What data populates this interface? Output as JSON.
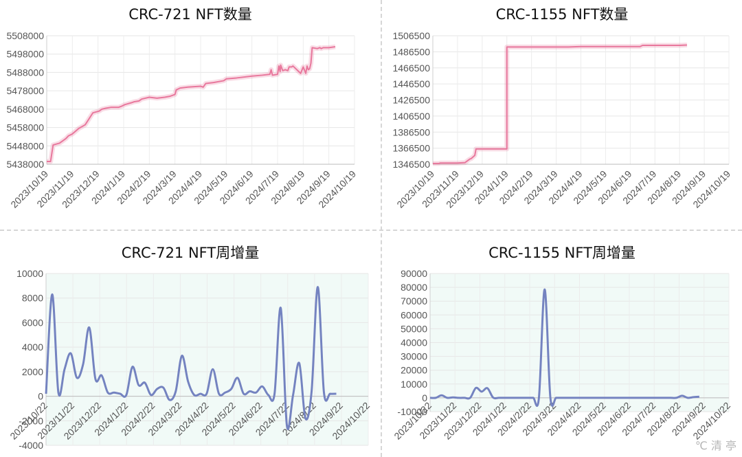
{
  "chart_data": [
    {
      "type": "line",
      "title": "CRC-721 NFT数量",
      "xlabel": "",
      "ylabel": "",
      "ylim": [
        5438000,
        5508000
      ],
      "yticks": [
        5438000,
        5448000,
        5458000,
        5468000,
        5478000,
        5488000,
        5498000,
        5508000
      ],
      "xticks": [
        "2023/10/19",
        "2023/11/19",
        "2023/12/19",
        "2024/1/19",
        "2024/2/19",
        "2024/3/19",
        "2024/4/19",
        "2024/5/19",
        "2024/6/19",
        "2024/7/19",
        "2024/8/19",
        "2024/9/19",
        "2024/10/19"
      ],
      "grid": true,
      "line_color": "#e8779c",
      "series": [
        {
          "x": [
            0,
            0.15,
            0.25,
            0.5,
            0.75,
            0.85,
            1.0,
            1.25,
            1.5,
            1.8,
            2.05,
            2.15,
            2.3,
            2.5,
            2.8,
            2.9,
            3.05,
            3.3,
            3.4,
            3.6,
            3.7,
            4.0,
            4.3,
            4.6,
            4.8,
            5.0,
            5.05,
            5.2,
            5.5,
            6.0,
            6.1,
            6.2,
            6.5,
            6.9,
            7.0,
            7.4,
            8.0,
            8.4,
            8.7,
            8.75,
            8.8,
            9.0,
            9.05,
            9.1,
            9.12,
            9.2,
            9.3,
            9.4,
            9.45,
            9.55,
            9.6,
            9.9,
            10.0,
            10.1,
            10.15,
            10.2,
            10.25,
            10.3,
            10.35,
            10.55,
            10.65,
            10.7,
            10.78,
            11.0,
            11.25
          ],
          "y": [
            5439500,
            5439500,
            5448500,
            5449500,
            5452000,
            5453500,
            5454500,
            5457500,
            5459500,
            5466000,
            5467000,
            5468000,
            5468500,
            5469000,
            5469000,
            5469500,
            5470500,
            5471500,
            5472000,
            5472500,
            5473500,
            5474500,
            5474000,
            5474500,
            5475000,
            5476000,
            5478500,
            5479500,
            5480000,
            5480500,
            5480000,
            5482000,
            5482500,
            5483500,
            5484500,
            5485000,
            5486000,
            5486500,
            5487000,
            5489500,
            5486500,
            5487000,
            5491500,
            5488500,
            5492000,
            5489000,
            5489500,
            5489000,
            5491000,
            5491000,
            5491500,
            5487500,
            5491000,
            5487500,
            5491500,
            5489500,
            5490000,
            5493000,
            5501500,
            5501000,
            5501500,
            5501000,
            5501500,
            5501500,
            5502000
          ]
        }
      ]
    },
    {
      "type": "line",
      "title": "CRC-1155 NFT数量",
      "xlabel": "",
      "ylabel": "",
      "ylim": [
        1346500,
        1506500
      ],
      "yticks": [
        1346500,
        1366500,
        1386500,
        1406500,
        1426500,
        1446500,
        1466500,
        1486500,
        1506500
      ],
      "xticks": [
        "2023/10/19",
        "2023/11/19",
        "2023/12/19",
        "2024/1/19",
        "2024/2/19",
        "2024/3/19",
        "2024/4/19",
        "2024/5/19",
        "2024/6/19",
        "2024/7/19",
        "2024/8/19",
        "2024/9/19",
        "2024/10/19"
      ],
      "grid": true,
      "line_color": "#e8779c",
      "series": [
        {
          "x": [
            0,
            0.25,
            0.3,
            0.6,
            1.0,
            1.3,
            1.5,
            1.55,
            1.7,
            1.75,
            1.9,
            2.1,
            2.5,
            2.7,
            3.0,
            3.0,
            3.1,
            3.5,
            4.0,
            4.5,
            5.0,
            5.5,
            6.0,
            6.5,
            7.0,
            7.5,
            8.0,
            8.3,
            8.4,
            8.5,
            9.0,
            9.5,
            10.0,
            10.3
          ],
          "y": [
            1347500,
            1347500,
            1348000,
            1348000,
            1348000,
            1348500,
            1353000,
            1353500,
            1357500,
            1365500,
            1365500,
            1365500,
            1365500,
            1365500,
            1365500,
            1492500,
            1492500,
            1492500,
            1492500,
            1492500,
            1492500,
            1492500,
            1493000,
            1493000,
            1493000,
            1493000,
            1493000,
            1493000,
            1493000,
            1494500,
            1494500,
            1494500,
            1494500,
            1495000
          ]
        }
      ]
    },
    {
      "type": "line",
      "title": "CRC-721 NFT周增量",
      "xlabel": "",
      "ylabel": "",
      "ylim": [
        -4000,
        10000
      ],
      "yticks": [
        -4000,
        -2000,
        0,
        2000,
        4000,
        6000,
        8000,
        10000
      ],
      "xticks": [
        "2023/10/22",
        "2023/11/22",
        "2023/12/22",
        "2024/1/22",
        "2024/2/22",
        "2024/3/22",
        "2024/4/22",
        "2024/5/22",
        "2024/6/22",
        "2024/7/22",
        "2024/8/22",
        "2024/9/22",
        "2024/10/22"
      ],
      "grid": true,
      "line_color": "#7483c0",
      "series": [
        {
          "x": [
            0.0,
            0.23,
            0.46,
            0.69,
            0.92,
            1.15,
            1.38,
            1.61,
            1.84,
            2.07,
            2.3,
            2.53,
            2.76,
            2.99,
            3.22,
            3.45,
            3.68,
            3.91,
            4.14,
            4.37,
            4.6,
            4.83,
            5.06,
            5.29,
            5.52,
            5.75,
            5.98,
            6.21,
            6.44,
            6.67,
            6.9,
            7.13,
            7.36,
            7.59,
            7.82,
            8.05,
            8.28,
            8.51,
            8.74,
            8.97,
            9.2,
            9.43,
            9.66,
            9.89,
            10.12,
            10.35,
            10.58,
            10.81
          ],
          "y": [
            200,
            8300,
            300,
            2200,
            3500,
            1500,
            2600,
            5600,
            1400,
            1700,
            300,
            300,
            200,
            100,
            2400,
            900,
            1100,
            100,
            600,
            700,
            -300,
            400,
            3300,
            1200,
            100,
            200,
            200,
            2200,
            200,
            300,
            600,
            1500,
            200,
            400,
            300,
            800,
            100,
            200,
            7200,
            -2400,
            100,
            2700,
            -1800,
            400,
            8900,
            300,
            200,
            200
          ]
        }
      ]
    },
    {
      "type": "line",
      "title": "CRC-1155 NFT周增量",
      "xlabel": "",
      "ylabel": "",
      "ylim": [
        -10000,
        90000
      ],
      "yticks": [
        -10000,
        0,
        10000,
        20000,
        30000,
        40000,
        50000,
        60000,
        70000,
        80000,
        90000
      ],
      "xticks": [
        "2023/10/22",
        "2023/11/22",
        "2023/12/22",
        "2024/1/22",
        "2024/2/22",
        "2024/3/22",
        "2024/4/22",
        "2024/5/22",
        "2024/6/22",
        "2024/7/22",
        "2024/8/22",
        "2024/9/22",
        "2024/10/22"
      ],
      "grid": true,
      "line_color": "#7483c0",
      "series": [
        {
          "x": [
            0.0,
            0.23,
            0.46,
            0.69,
            0.92,
            1.15,
            1.38,
            1.61,
            1.84,
            2.07,
            2.3,
            2.53,
            2.76,
            2.99,
            3.22,
            3.45,
            3.68,
            3.91,
            4.14,
            4.37,
            4.6,
            4.83,
            5.06,
            5.29,
            5.52,
            5.75,
            5.98,
            6.21,
            6.44,
            6.67,
            6.9,
            7.13,
            7.36,
            7.59,
            7.82,
            8.05,
            8.28,
            8.51,
            8.74,
            8.97,
            9.2,
            9.43,
            9.66,
            9.89,
            10.12,
            10.35,
            10.58,
            10.81
          ],
          "y": [
            0,
            0,
            1800,
            0,
            300,
            0,
            0,
            0,
            7200,
            4500,
            7000,
            200,
            0,
            0,
            0,
            0,
            0,
            0,
            0,
            0,
            78500,
            100,
            0,
            0,
            0,
            0,
            0,
            0,
            0,
            0,
            0,
            0,
            0,
            0,
            0,
            0,
            0,
            0,
            0,
            0,
            0,
            0,
            0,
            0,
            1500,
            0,
            500,
            800
          ]
        }
      ]
    }
  ],
  "watermark": "℃ 清 亭"
}
